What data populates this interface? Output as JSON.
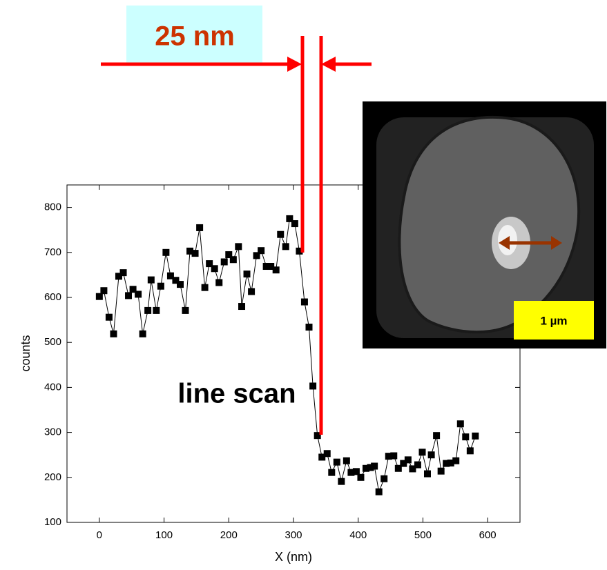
{
  "chart_data": {
    "type": "line",
    "x_label": "X (nm)",
    "y_label": "counts",
    "annotations": [
      "25 nm",
      "line scan",
      "1 µm"
    ],
    "x": [
      0,
      7,
      15,
      22,
      30,
      37,
      45,
      52,
      60,
      67,
      75,
      80,
      88,
      95,
      103,
      110,
      118,
      125,
      133,
      140,
      148,
      155,
      163,
      170,
      178,
      185,
      193,
      200,
      207,
      215,
      220,
      228,
      235,
      243,
      250,
      258,
      265,
      273,
      280,
      288,
      294,
      302,
      309,
      317,
      324,
      330,
      337,
      344,
      352,
      359,
      367,
      374,
      382,
      389,
      397,
      404,
      412,
      419,
      425,
      432,
      440,
      447,
      455,
      462,
      470,
      477,
      484,
      492,
      499,
      507,
      513,
      521,
      528,
      536,
      543,
      551,
      558,
      566,
      573,
      581
    ],
    "values": [
      602,
      615,
      556,
      519,
      647,
      655,
      604,
      618,
      607,
      519,
      571,
      639,
      571,
      625,
      700,
      648,
      638,
      629,
      571,
      703,
      698,
      755,
      622,
      675,
      664,
      633,
      679,
      695,
      684,
      713,
      580,
      652,
      613,
      693,
      704,
      669,
      669,
      661,
      740,
      713,
      775,
      764,
      703,
      590,
      534,
      403,
      293,
      245,
      253,
      211,
      234,
      191,
      237,
      211,
      213,
      200,
      220,
      222,
      225,
      168,
      197,
      247,
      248,
      220,
      231,
      239,
      219,
      228,
      256,
      208,
      250,
      293,
      214,
      231,
      232,
      237,
      319,
      290,
      259,
      292
    ],
    "color": "#000000",
    "xlim": [
      -50,
      650
    ],
    "ylim": [
      100,
      850
    ],
    "xticks": [
      0,
      100,
      200,
      300,
      400,
      500,
      600
    ],
    "yticks": [
      100,
      200,
      300,
      400,
      500,
      600,
      700,
      800
    ]
  }
}
